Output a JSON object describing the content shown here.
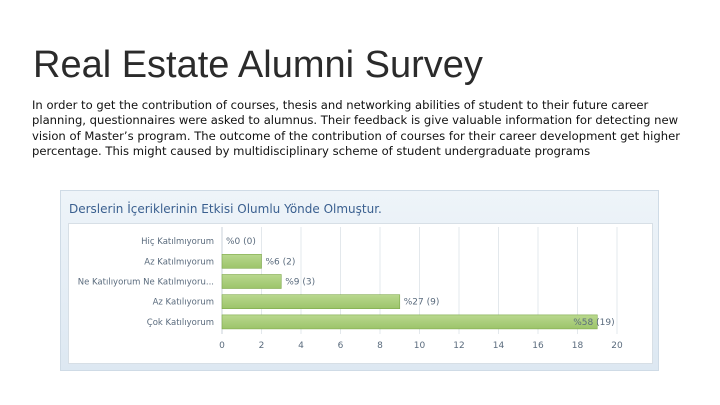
{
  "slide": {
    "title": "Real Estate Alumni Survey",
    "body": " In order to get the contribution of courses, thesis and networking abilities of student to their future career planning,  questionnaires were asked to alumnus. Their feedback is give valuable information for detecting new vision of Master’s program. The outcome of the contribution of courses for their career development get higher percentage. This might caused by multidisciplinary scheme of student undergraduate programs"
  },
  "colors": {
    "bar_fill": "#9cc46a",
    "bar_stroke": "#7fa94c",
    "title": "#3a5f8f",
    "label": "#5a6b7d"
  },
  "chart_data": {
    "type": "bar",
    "orientation": "horizontal",
    "title": "Derslerin İçeriklerinin Etkisi Olumlu Yönde Olmuştur.",
    "categories": [
      "Hiç Katılmıyorum",
      "Az Katılmıyorum",
      "Ne Katılıyorum Ne Katılmıyoru...",
      "Az Katılıyorum",
      "Çok Katılıyorum"
    ],
    "values": [
      0,
      2,
      3,
      9,
      19
    ],
    "data_labels": [
      "%0 (0)",
      "%6 (2)",
      "%9 (3)",
      "%27 (9)",
      "%58 (19)"
    ],
    "xlim": [
      0,
      20
    ],
    "xticks": [
      "0",
      "2",
      "4",
      "6",
      "8",
      "10",
      "12",
      "14",
      "16",
      "18",
      "20"
    ],
    "grid": true
  }
}
